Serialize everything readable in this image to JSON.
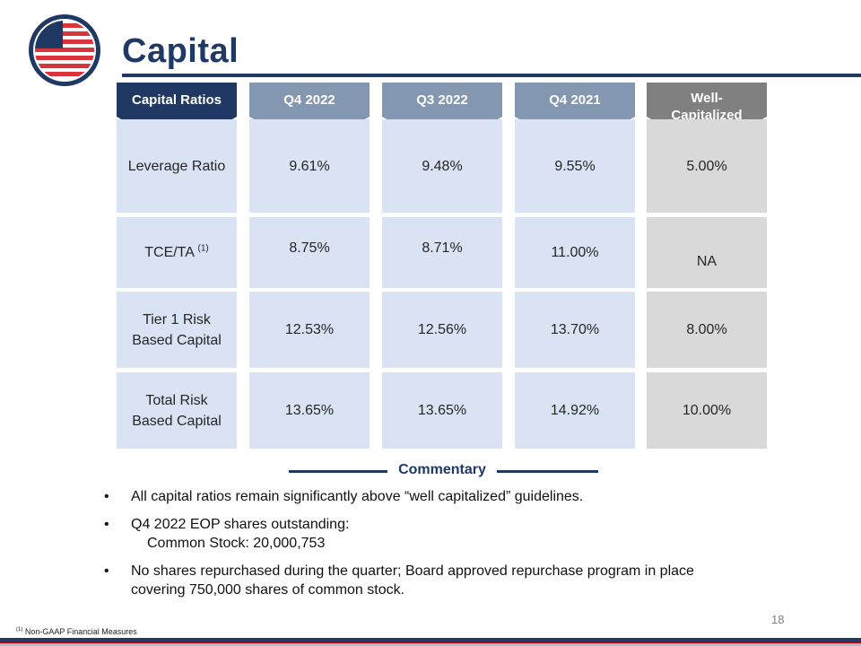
{
  "title": "Capital",
  "table": {
    "headers": {
      "metric": "Capital Ratios",
      "q4_2022": "Q4 2022",
      "q3_2022": "Q3 2022",
      "q4_2021": "Q4 2021",
      "well_line1": "Well-",
      "well_line2": "Capitalized"
    },
    "rows": [
      {
        "label_1": "Leverage Ratio",
        "label_2": "",
        "footnote": "",
        "q4_2022": "9.61%",
        "q3_2022": "9.48%",
        "q4_2021": "9.55%",
        "well": "5.00%"
      },
      {
        "label_1": "TCE/TA",
        "label_2": "",
        "footnote": "(1)",
        "q4_2022": "8.75%",
        "q3_2022": "8.71%",
        "q4_2021": "11.00%",
        "well": "NA"
      },
      {
        "label_1": "Tier 1 Risk",
        "label_2": "Based Capital",
        "footnote": "",
        "q4_2022": "12.53%",
        "q3_2022": "12.56%",
        "q4_2021": "13.70%",
        "well": "8.00%"
      },
      {
        "label_1": "Total Risk",
        "label_2": "Based Capital",
        "footnote": "",
        "q4_2022": "13.65%",
        "q3_2022": "13.65%",
        "q4_2021": "14.92%",
        "well": "10.00%"
      }
    ]
  },
  "commentary": {
    "title": "Commentary",
    "bullet_char": "•",
    "items": [
      {
        "text": "All capital ratios remain significantly above “well capitalized” guidelines."
      },
      {
        "text": "Q4 2022 EOP shares outstanding:",
        "sub": "Common Stock: 20,000,753"
      },
      {
        "text": "No shares repurchased during the quarter; Board approved repurchase program in place",
        "text2": "covering 750,000 shares of common stock."
      }
    ]
  },
  "page_number": "18",
  "footnote": {
    "marker": "(1)",
    "text": "Non-GAAP Financial Measures"
  },
  "colors": {
    "navy": "#1f3864",
    "steel": "#8497b0",
    "gray_header": "#808080",
    "cell_blue": "#dae3f3",
    "cell_gray": "#d9d9d9",
    "accent_red": "#c00000"
  }
}
